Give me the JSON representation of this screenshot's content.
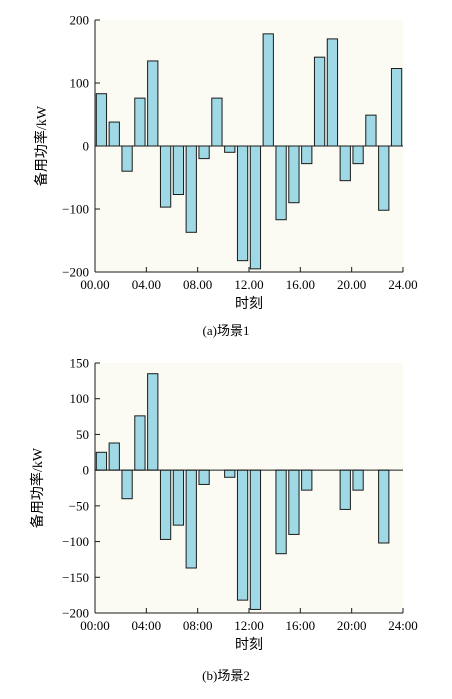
{
  "colors": {
    "panel_bg": "#fbfbf3",
    "bar_fill": "#9fd9e6",
    "bar_stroke": "#1a1a1a",
    "axis": "#1a1a1a"
  },
  "chart_data": [
    {
      "type": "bar",
      "caption": "(a)场景1",
      "xlabel": "时刻",
      "ylabel": "备用功率/kW",
      "ylim": [
        -200,
        200
      ],
      "yticks": [
        -200,
        -100,
        0,
        100,
        200
      ],
      "ytick_labels": [
        "−200",
        "−100",
        "0",
        "100",
        "200"
      ],
      "xlim": [
        0,
        24
      ],
      "xticks": [
        0,
        4,
        8,
        12,
        16,
        20,
        24
      ],
      "xtick_labels": [
        "00.00",
        "04.00",
        "08.00",
        "12.00",
        "16.00",
        "20.00",
        "24.00"
      ],
      "grid": false,
      "x": [
        1,
        2,
        3,
        4,
        5,
        6,
        7,
        8,
        9,
        10,
        11,
        12,
        13,
        14,
        15,
        16,
        17,
        18,
        19,
        20,
        21,
        22,
        23,
        24
      ],
      "values": [
        83,
        38,
        -40,
        76,
        135,
        -97,
        -77,
        -137,
        -20,
        76,
        -10,
        -182,
        -195,
        178,
        -117,
        -90,
        -28,
        141,
        170,
        -55,
        -28,
        49,
        -102,
        123
      ]
    },
    {
      "type": "bar",
      "caption": "(b)场景2",
      "xlabel": "时刻",
      "ylabel": "备用功率/kW",
      "ylim": [
        -200,
        150
      ],
      "yticks": [
        -200,
        -150,
        -100,
        -50,
        0,
        50,
        100,
        150
      ],
      "ytick_labels": [
        "−200",
        "−150",
        "−100",
        "−50",
        "0",
        "50",
        "100",
        "150"
      ],
      "xlim": [
        0,
        24
      ],
      "xticks": [
        0,
        4,
        8,
        12,
        16,
        20,
        24
      ],
      "xtick_labels": [
        "00:00",
        "04:00",
        "08:00",
        "12:00",
        "16:00",
        "20:00",
        "24:00"
      ],
      "grid": false,
      "x": [
        1,
        2,
        3,
        4,
        5,
        6,
        7,
        8,
        9,
        10,
        11,
        12,
        13,
        14,
        15,
        16,
        17,
        18,
        19,
        20,
        21,
        22,
        23,
        24
      ],
      "values": [
        25,
        38,
        -40,
        76,
        135,
        -97,
        -77,
        -137,
        -20,
        0,
        -10,
        -182,
        -195,
        0,
        -117,
        -90,
        -28,
        0,
        0,
        -55,
        -28,
        0,
        -102,
        0
      ]
    }
  ]
}
